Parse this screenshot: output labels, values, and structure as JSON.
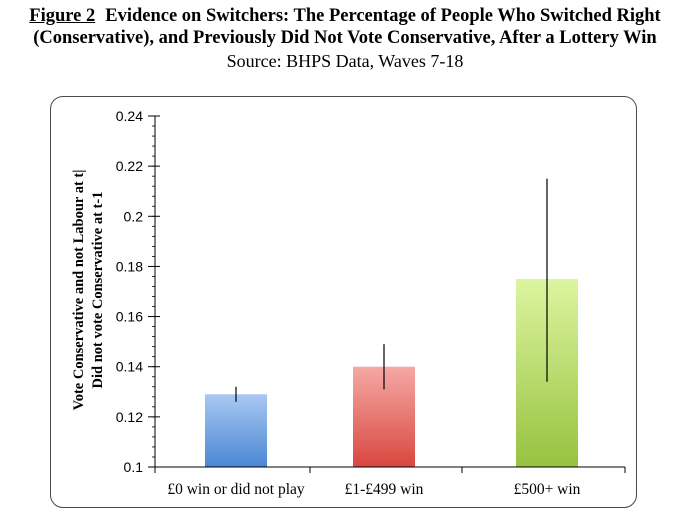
{
  "header": {
    "figure_label": "Figure 2",
    "title_line1": "Evidence on Switchers: The Percentage of People Who Switched Right",
    "title_line2": "(Conservative), and Previously Did Not Vote Conservative, After a Lottery Win",
    "source": "Source: BHPS Data, Waves 7-18"
  },
  "chart_data": {
    "type": "bar",
    "title": "Evidence on Switchers: The Percentage of People Who Switched Right (Conservative), and Previously Did Not Vote Conservative, After a Lottery Win",
    "subtitle": "Source: BHPS Data, Waves 7-18",
    "ylabel_line1": "Vote Conservative and not Labour at t|",
    "ylabel_line2": "Did not vote Conservative at t-1",
    "xlabel": "",
    "ylim": [
      0.1,
      0.24
    ],
    "yticks": [
      0.1,
      0.12,
      0.14,
      0.16,
      0.18,
      0.2,
      0.22,
      0.24
    ],
    "ytick_labels": [
      "0.1",
      "0.12",
      "0.14",
      "0.16",
      "0.18",
      "0.2",
      "0.22",
      "0.24"
    ],
    "categories": [
      "£0 win or did not play",
      "£1-£499 win",
      "£500+ win"
    ],
    "values": [
      0.129,
      0.14,
      0.175
    ],
    "error_low": [
      0.126,
      0.131,
      0.134
    ],
    "error_high": [
      0.132,
      0.149,
      0.215
    ],
    "grid": false,
    "legend": "none",
    "colors": {
      "bar1_top": "#a9c8f2",
      "bar1_bottom": "#4a87d3",
      "bar2_top": "#f5a9a5",
      "bar2_bottom": "#d9473f",
      "bar3_top": "#dcf5a0",
      "bar3_bottom": "#97c240",
      "axis": "#000000"
    }
  }
}
